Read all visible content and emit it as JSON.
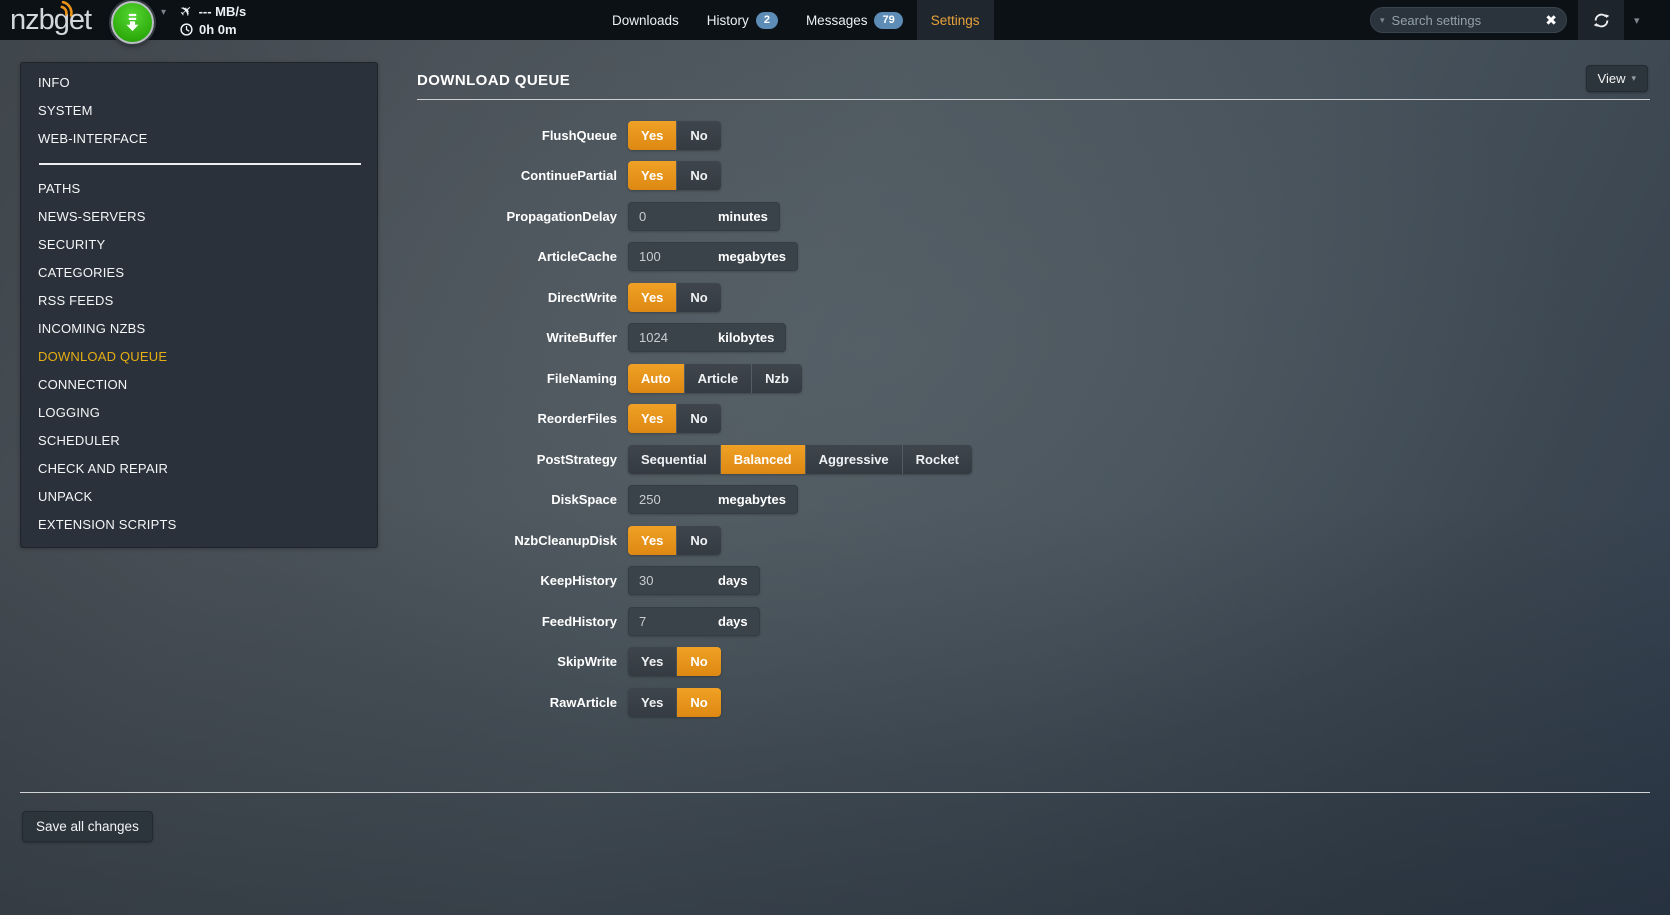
{
  "navbar": {
    "logo": "nzbget",
    "speed": "--- MB/s",
    "time_left": "0h 0m",
    "tabs": [
      {
        "label": "Downloads",
        "badge": null,
        "active": false
      },
      {
        "label": "History",
        "badge": "2",
        "active": false
      },
      {
        "label": "Messages",
        "badge": "79",
        "active": false
      },
      {
        "label": "Settings",
        "badge": null,
        "active": true
      }
    ],
    "search": {
      "placeholder": "Search settings",
      "value": ""
    }
  },
  "sidebar": {
    "items": [
      {
        "label": "INFO",
        "active": false
      },
      {
        "label": "SYSTEM",
        "active": false
      },
      {
        "label": "WEB-INTERFACE",
        "active": false,
        "divider_after": true
      },
      {
        "label": "PATHS",
        "active": false
      },
      {
        "label": "NEWS-SERVERS",
        "active": false
      },
      {
        "label": "SECURITY",
        "active": false
      },
      {
        "label": "CATEGORIES",
        "active": false
      },
      {
        "label": "RSS FEEDS",
        "active": false
      },
      {
        "label": "INCOMING NZBS",
        "active": false
      },
      {
        "label": "DOWNLOAD QUEUE",
        "active": true
      },
      {
        "label": "CONNECTION",
        "active": false
      },
      {
        "label": "LOGGING",
        "active": false
      },
      {
        "label": "SCHEDULER",
        "active": false
      },
      {
        "label": "CHECK AND REPAIR",
        "active": false
      },
      {
        "label": "UNPACK",
        "active": false
      },
      {
        "label": "EXTENSION SCRIPTS",
        "active": false
      }
    ]
  },
  "main": {
    "title": "DOWNLOAD QUEUE",
    "view_button": "View",
    "save_button": "Save all changes",
    "settings": [
      {
        "name": "FlushQueue",
        "type": "toggle",
        "options": [
          "Yes",
          "No"
        ],
        "selected": "Yes"
      },
      {
        "name": "ContinuePartial",
        "type": "toggle",
        "options": [
          "Yes",
          "No"
        ],
        "selected": "Yes"
      },
      {
        "name": "PropagationDelay",
        "type": "input",
        "value": "0",
        "unit": "minutes"
      },
      {
        "name": "ArticleCache",
        "type": "input",
        "value": "100",
        "unit": "megabytes"
      },
      {
        "name": "DirectWrite",
        "type": "toggle",
        "options": [
          "Yes",
          "No"
        ],
        "selected": "Yes"
      },
      {
        "name": "WriteBuffer",
        "type": "input",
        "value": "1024",
        "unit": "kilobytes"
      },
      {
        "name": "FileNaming",
        "type": "toggle",
        "options": [
          "Auto",
          "Article",
          "Nzb"
        ],
        "selected": "Auto"
      },
      {
        "name": "ReorderFiles",
        "type": "toggle",
        "options": [
          "Yes",
          "No"
        ],
        "selected": "Yes"
      },
      {
        "name": "PostStrategy",
        "type": "toggle",
        "options": [
          "Sequential",
          "Balanced",
          "Aggressive",
          "Rocket"
        ],
        "selected": "Balanced"
      },
      {
        "name": "DiskSpace",
        "type": "input",
        "value": "250",
        "unit": "megabytes"
      },
      {
        "name": "NzbCleanupDisk",
        "type": "toggle",
        "options": [
          "Yes",
          "No"
        ],
        "selected": "Yes"
      },
      {
        "name": "KeepHistory",
        "type": "input",
        "value": "30",
        "unit": "days"
      },
      {
        "name": "FeedHistory",
        "type": "input",
        "value": "7",
        "unit": "days"
      },
      {
        "name": "SkipWrite",
        "type": "toggle",
        "options": [
          "Yes",
          "No"
        ],
        "selected": "No"
      },
      {
        "name": "RawArticle",
        "type": "toggle",
        "options": [
          "Yes",
          "No"
        ],
        "selected": "No"
      }
    ]
  },
  "colors": {
    "accent_orange": "#e8941c",
    "active_sidebar_link": "#e5ae12",
    "active_tab_text": "#e7a23b",
    "badge_blue": "#5d8cb7",
    "logo_button_green": "#2fae0e",
    "navbar_bg": "#0c1116",
    "panel_bg": "#2a313a"
  }
}
